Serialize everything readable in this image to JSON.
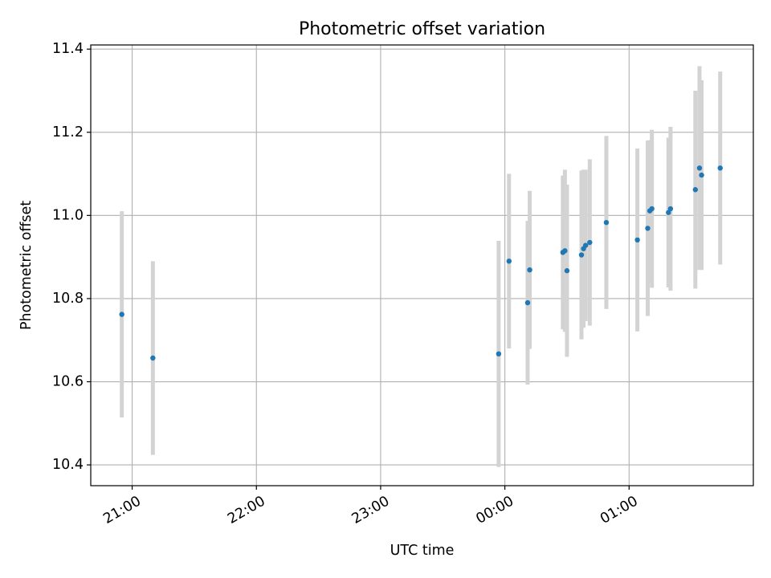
{
  "chart_data": {
    "type": "scatter",
    "title": "Photometric offset variation",
    "xlabel": "UTC time",
    "ylabel": "Photometric offset",
    "x_unit": "hours (UTC clock, continuing past midnight)",
    "xlim": [
      "20:40",
      "02:00"
    ],
    "ylim": [
      10.35,
      11.41
    ],
    "x_ticks": [
      {
        "label": "21:00",
        "time": "21:00"
      },
      {
        "label": "22:00",
        "time": "22:00"
      },
      {
        "label": "23:00",
        "time": "23:00"
      },
      {
        "label": "00:00",
        "time": "00:00"
      },
      {
        "label": "01:00",
        "time": "01:00"
      }
    ],
    "y_ticks": [
      10.4,
      10.6,
      10.8,
      11.0,
      11.2,
      11.4
    ],
    "y_tick_labels": [
      "10.4",
      "10.6",
      "10.8",
      "11.0",
      "11.2",
      "11.4"
    ],
    "grid": true,
    "errorbar_color": "#d3d3d3",
    "point_color": "#1f77b4",
    "points": [
      {
        "time": "20:55",
        "y": 10.762,
        "yerr": 0.248
      },
      {
        "time": "21:10",
        "y": 10.657,
        "yerr": 0.233
      },
      {
        "time": "23:57",
        "y": 10.667,
        "yerr": 0.272
      },
      {
        "time": "00:02",
        "y": 10.89,
        "yerr": 0.21
      },
      {
        "time": "00:11",
        "y": 10.79,
        "yerr": 0.197
      },
      {
        "time": "00:12",
        "y": 10.869,
        "yerr": 0.19
      },
      {
        "time": "00:28",
        "y": 10.911,
        "yerr": 0.185
      },
      {
        "time": "00:29",
        "y": 10.915,
        "yerr": 0.195
      },
      {
        "time": "00:30",
        "y": 10.867,
        "yerr": 0.207
      },
      {
        "time": "00:37",
        "y": 10.905,
        "yerr": 0.203
      },
      {
        "time": "00:38",
        "y": 10.92,
        "yerr": 0.19
      },
      {
        "time": "00:39",
        "y": 10.928,
        "yerr": 0.182
      },
      {
        "time": "00:41",
        "y": 10.935,
        "yerr": 0.2
      },
      {
        "time": "00:49",
        "y": 10.983,
        "yerr": 0.208
      },
      {
        "time": "01:04",
        "y": 10.941,
        "yerr": 0.22
      },
      {
        "time": "01:09",
        "y": 10.969,
        "yerr": 0.211
      },
      {
        "time": "01:10",
        "y": 11.011,
        "yerr": 0.17
      },
      {
        "time": "01:11",
        "y": 11.016,
        "yerr": 0.19
      },
      {
        "time": "01:19",
        "y": 11.007,
        "yerr": 0.18
      },
      {
        "time": "01:20",
        "y": 11.016,
        "yerr": 0.197
      },
      {
        "time": "01:32",
        "y": 11.062,
        "yerr": 0.238
      },
      {
        "time": "01:34",
        "y": 11.114,
        "yerr": 0.245
      },
      {
        "time": "01:35",
        "y": 11.097,
        "yerr": 0.228
      },
      {
        "time": "01:44",
        "y": 11.114,
        "yerr": 0.232
      }
    ]
  }
}
